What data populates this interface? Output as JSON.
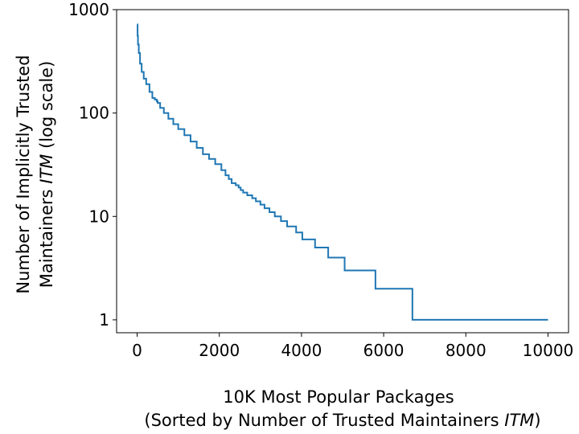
{
  "chart_data": {
    "type": "line",
    "title": "",
    "x_scale": "linear",
    "y_scale": "log",
    "xlim": [
      -500,
      10500
    ],
    "ylim": [
      0.75,
      1000
    ],
    "grid": false,
    "legend": "none",
    "xlabel_line1": "10K Most Popular Packages",
    "xlabel_line2_pre": "(Sorted by Number of Trusted Maintainers ",
    "xlabel_line2_italic": "ITM",
    "xlabel_line2_post": ")",
    "ylabel_line1": "Number of Implicitly Trusted",
    "ylabel_line2_pre": "Maintainers ",
    "ylabel_line2_italic": "ITM",
    "ylabel_line2_post": " (log scale)",
    "x_ticks": [
      {
        "value": 0,
        "label": "0"
      },
      {
        "value": 2000,
        "label": "2000"
      },
      {
        "value": 4000,
        "label": "4000"
      },
      {
        "value": 6000,
        "label": "6000"
      },
      {
        "value": 8000,
        "label": "8000"
      },
      {
        "value": 10000,
        "label": "10000"
      }
    ],
    "y_ticks": [
      {
        "value": 1,
        "label": "1"
      },
      {
        "value": 10,
        "label": "10"
      },
      {
        "value": 100,
        "label": "100"
      },
      {
        "value": 1000,
        "label": "1000"
      }
    ],
    "series": [
      {
        "color": "#1f77b4",
        "step": true,
        "points": [
          [
            0,
            720
          ],
          [
            10,
            560
          ],
          [
            20,
            460
          ],
          [
            40,
            380
          ],
          [
            70,
            300
          ],
          [
            110,
            250
          ],
          [
            160,
            215
          ],
          [
            220,
            190
          ],
          [
            300,
            160
          ],
          [
            370,
            140
          ],
          [
            430,
            135
          ],
          [
            480,
            130
          ],
          [
            500,
            125
          ],
          [
            560,
            112
          ],
          [
            650,
            100
          ],
          [
            760,
            88
          ],
          [
            880,
            78
          ],
          [
            1000,
            70
          ],
          [
            1150,
            61
          ],
          [
            1300,
            53
          ],
          [
            1450,
            46
          ],
          [
            1600,
            40
          ],
          [
            1750,
            36
          ],
          [
            1900,
            32
          ],
          [
            2050,
            28
          ],
          [
            2150,
            25
          ],
          [
            2230,
            23
          ],
          [
            2300,
            21
          ],
          [
            2400,
            20
          ],
          [
            2470,
            19
          ],
          [
            2520,
            18
          ],
          [
            2580,
            17
          ],
          [
            2680,
            16
          ],
          [
            2800,
            15
          ],
          [
            2890,
            14
          ],
          [
            3000,
            13
          ],
          [
            3100,
            12
          ],
          [
            3220,
            11
          ],
          [
            3350,
            10
          ],
          [
            3500,
            9
          ],
          [
            3650,
            8
          ],
          [
            3870,
            7
          ],
          [
            4020,
            6
          ],
          [
            4330,
            5
          ],
          [
            4650,
            4
          ],
          [
            5050,
            3
          ],
          [
            5800,
            2
          ],
          [
            6700,
            1
          ],
          [
            10000,
            1
          ]
        ]
      }
    ]
  }
}
